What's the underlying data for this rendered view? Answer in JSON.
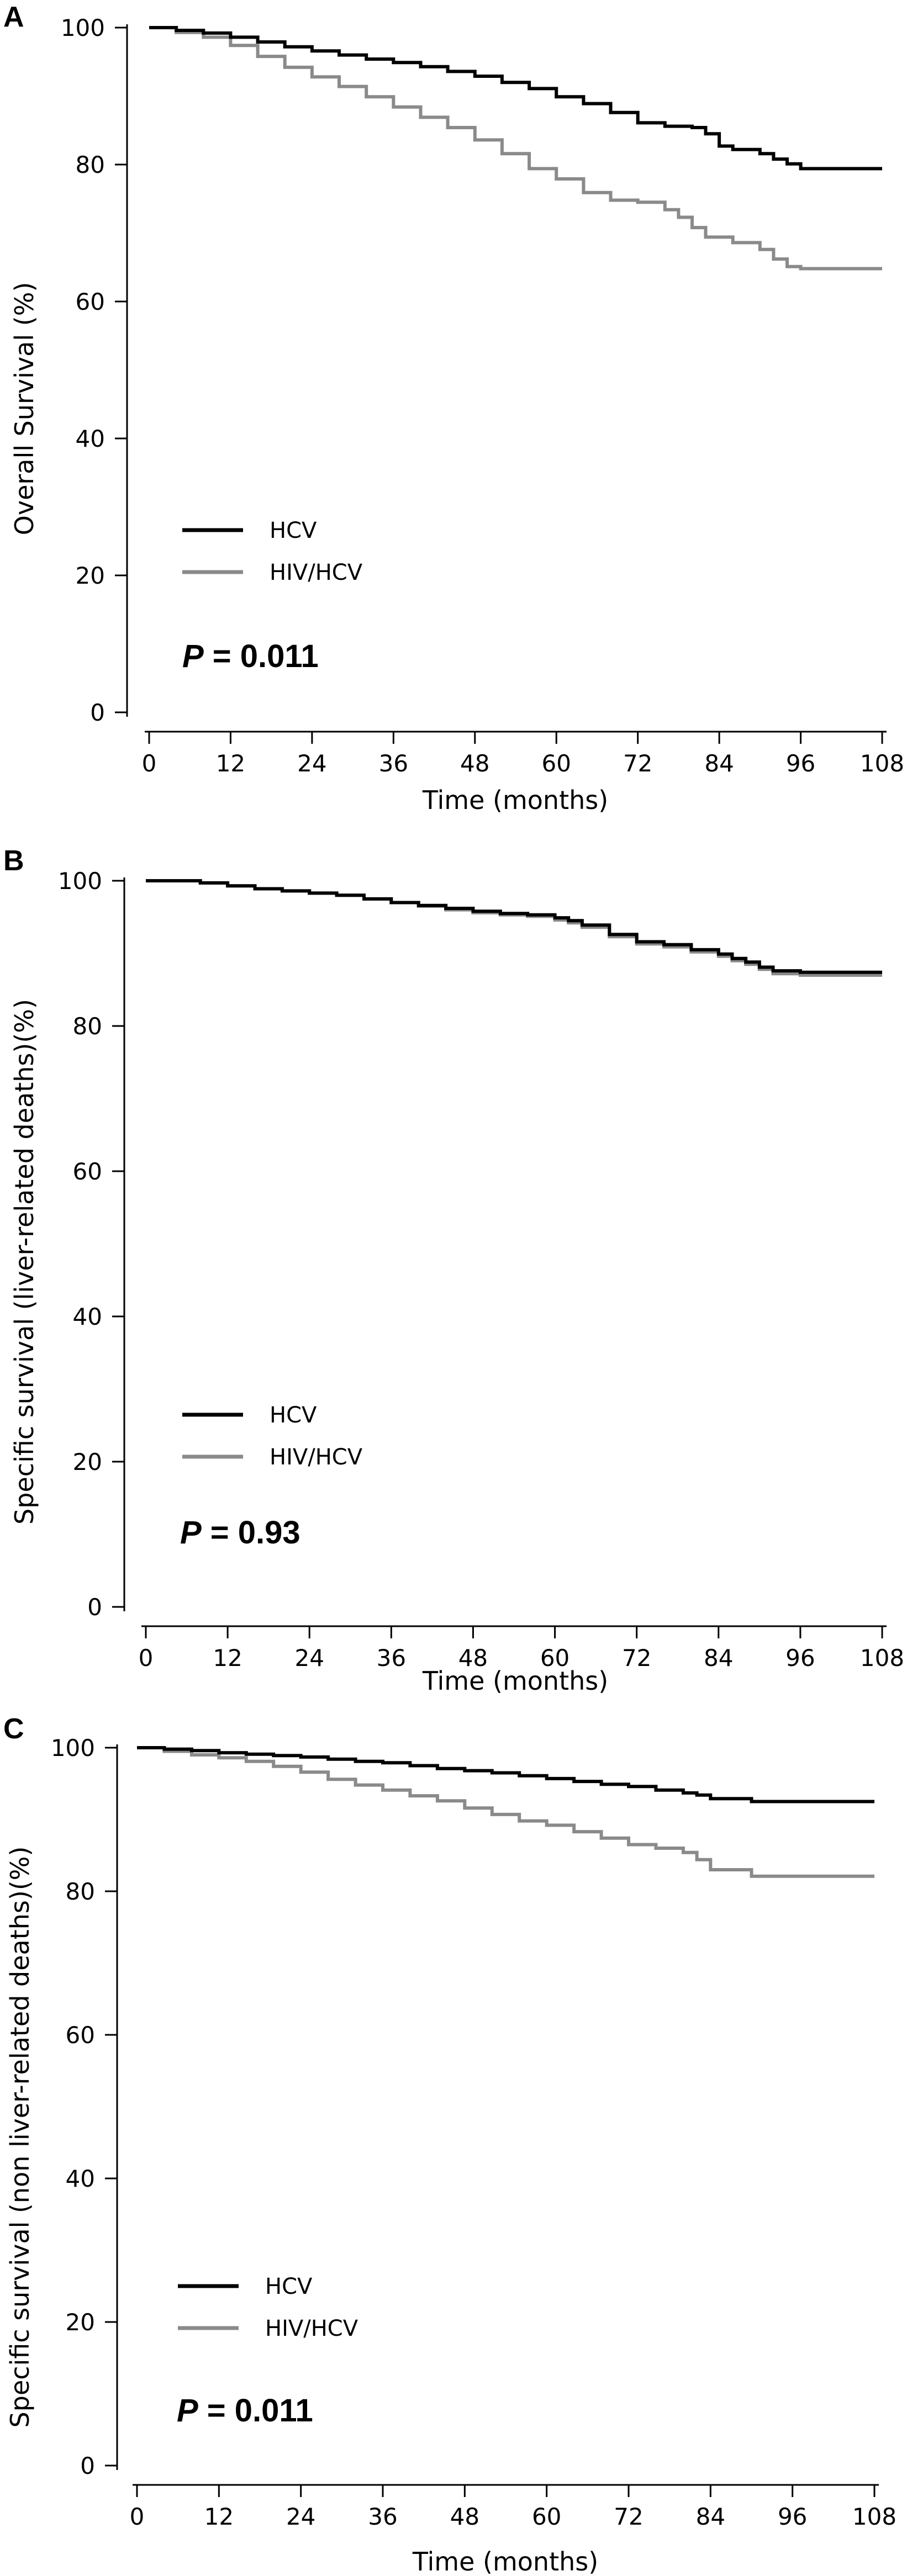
{
  "chart_data": [
    {
      "type": "line",
      "panel_label": "A",
      "xlabel": "Time (months)",
      "ylabel": "Overall Survival (%)",
      "xlim": [
        0,
        108
      ],
      "ylim": [
        0,
        100
      ],
      "xticks": [
        "0",
        "12",
        "24",
        "36",
        "48",
        "60",
        "72",
        "84",
        "96",
        "108"
      ],
      "yticks": [
        "0",
        "20",
        "40",
        "60",
        "80",
        "100"
      ],
      "grid": false,
      "legend_position": "lower-left",
      "series": [
        {
          "name": "HCV",
          "color": "#000000",
          "points": [
            [
              0,
              100
            ],
            [
              4,
              99.6
            ],
            [
              8,
              99.2
            ],
            [
              12,
              98.6
            ],
            [
              16,
              97.9
            ],
            [
              20,
              97.2
            ],
            [
              24,
              96.6
            ],
            [
              28,
              96.0
            ],
            [
              32,
              95.4
            ],
            [
              36,
              94.9
            ],
            [
              40,
              94.3
            ],
            [
              44,
              93.6
            ],
            [
              48,
              92.9
            ],
            [
              52,
              92.0
            ],
            [
              56,
              91.1
            ],
            [
              60,
              89.9
            ],
            [
              64,
              88.9
            ],
            [
              68,
              87.6
            ],
            [
              72,
              86.1
            ],
            [
              76,
              85.6
            ],
            [
              80,
              85.4
            ],
            [
              82,
              84.5
            ],
            [
              84,
              82.7
            ],
            [
              86,
              82.2
            ],
            [
              90,
              81.6
            ],
            [
              92,
              80.8
            ],
            [
              94,
              80.1
            ],
            [
              96,
              79.4
            ],
            [
              100,
              79.4
            ],
            [
              108,
              79.4
            ]
          ]
        },
        {
          "name": "HIV/HCV",
          "color": "#8a8a8a",
          "points": [
            [
              0,
              100
            ],
            [
              4,
              99.3
            ],
            [
              8,
              98.6
            ],
            [
              12,
              97.4
            ],
            [
              16,
              95.8
            ],
            [
              20,
              94.2
            ],
            [
              24,
              92.8
            ],
            [
              28,
              91.4
            ],
            [
              32,
              89.9
            ],
            [
              36,
              88.4
            ],
            [
              40,
              86.9
            ],
            [
              44,
              85.4
            ],
            [
              48,
              83.6
            ],
            [
              52,
              81.6
            ],
            [
              56,
              79.4
            ],
            [
              60,
              77.9
            ],
            [
              64,
              75.9
            ],
            [
              68,
              74.8
            ],
            [
              72,
              74.5
            ],
            [
              76,
              73.4
            ],
            [
              78,
              72.3
            ],
            [
              80,
              70.8
            ],
            [
              82,
              69.4
            ],
            [
              86,
              68.6
            ],
            [
              90,
              67.6
            ],
            [
              92,
              66.2
            ],
            [
              94,
              65.1
            ],
            [
              96,
              64.8
            ],
            [
              108,
              64.8
            ]
          ]
        }
      ],
      "annotation": {
        "prefix": "P",
        "text": " = 0.011"
      }
    },
    {
      "type": "line",
      "panel_label": "B",
      "xlabel": "Time (months)",
      "ylabel": "Specific survival (liver-related deaths)(%)",
      "xlim": [
        0,
        108
      ],
      "ylim": [
        0,
        100
      ],
      "xticks": [
        "0",
        "12",
        "24",
        "36",
        "48",
        "60",
        "72",
        "84",
        "96",
        "108"
      ],
      "yticks": [
        "0",
        "20",
        "40",
        "60",
        "80",
        "100"
      ],
      "grid": false,
      "legend_position": "lower-left",
      "series": [
        {
          "name": "HCV",
          "color": "#000000",
          "points": [
            [
              0,
              100
            ],
            [
              8,
              99.7
            ],
            [
              12,
              99.3
            ],
            [
              16,
              98.9
            ],
            [
              20,
              98.6
            ],
            [
              24,
              98.3
            ],
            [
              28,
              98.0
            ],
            [
              32,
              97.5
            ],
            [
              36,
              97.0
            ],
            [
              40,
              96.6
            ],
            [
              44,
              96.2
            ],
            [
              48,
              95.8
            ],
            [
              52,
              95.5
            ],
            [
              56,
              95.3
            ],
            [
              60,
              94.9
            ],
            [
              62,
              94.5
            ],
            [
              64,
              93.9
            ],
            [
              68,
              92.6
            ],
            [
              72,
              91.6
            ],
            [
              76,
              91.2
            ],
            [
              80,
              90.5
            ],
            [
              84,
              89.9
            ],
            [
              86,
              89.3
            ],
            [
              88,
              88.8
            ],
            [
              90,
              88.1
            ],
            [
              92,
              87.6
            ],
            [
              96,
              87.4
            ],
            [
              108,
              87.4
            ]
          ]
        },
        {
          "name": "HIV/HCV",
          "color": "#8a8a8a",
          "points": [
            [
              0,
              100
            ],
            [
              8,
              99.7
            ],
            [
              12,
              99.3
            ],
            [
              16,
              98.9
            ],
            [
              20,
              98.6
            ],
            [
              24,
              98.3
            ],
            [
              28,
              98.0
            ],
            [
              32,
              97.5
            ],
            [
              36,
              97.0
            ],
            [
              40,
              96.5
            ],
            [
              44,
              96.0
            ],
            [
              48,
              95.6
            ],
            [
              52,
              95.3
            ],
            [
              56,
              95.1
            ],
            [
              60,
              94.6
            ],
            [
              62,
              94.2
            ],
            [
              64,
              93.6
            ],
            [
              68,
              92.3
            ],
            [
              72,
              91.3
            ],
            [
              76,
              90.9
            ],
            [
              80,
              90.2
            ],
            [
              84,
              89.6
            ],
            [
              86,
              89.0
            ],
            [
              88,
              88.5
            ],
            [
              90,
              87.8
            ],
            [
              92,
              87.2
            ],
            [
              96,
              87.0
            ],
            [
              108,
              87.0
            ]
          ]
        }
      ],
      "annotation": {
        "prefix": "P",
        "text": " = 0.93"
      }
    },
    {
      "type": "line",
      "panel_label": "C",
      "xlabel": "Time (months)",
      "ylabel": "Specific survival (non liver-related deaths)(%)",
      "xlim": [
        0,
        108
      ],
      "ylim": [
        0,
        100
      ],
      "xticks": [
        "0",
        "12",
        "24",
        "36",
        "48",
        "60",
        "72",
        "84",
        "96",
        "108"
      ],
      "yticks": [
        "0",
        "20",
        "40",
        "60",
        "80",
        "100"
      ],
      "grid": false,
      "legend_position": "lower-left",
      "series": [
        {
          "name": "HCV",
          "color": "#000000",
          "points": [
            [
              0,
              100
            ],
            [
              4,
              99.8
            ],
            [
              8,
              99.6
            ],
            [
              12,
              99.3
            ],
            [
              16,
              99.1
            ],
            [
              20,
              98.9
            ],
            [
              24,
              98.7
            ],
            [
              28,
              98.4
            ],
            [
              32,
              98.1
            ],
            [
              36,
              97.9
            ],
            [
              40,
              97.5
            ],
            [
              44,
              97.1
            ],
            [
              48,
              96.8
            ],
            [
              52,
              96.5
            ],
            [
              56,
              96.1
            ],
            [
              60,
              95.7
            ],
            [
              64,
              95.3
            ],
            [
              68,
              94.9
            ],
            [
              72,
              94.6
            ],
            [
              76,
              94.1
            ],
            [
              80,
              93.7
            ],
            [
              82,
              93.4
            ],
            [
              84,
              92.9
            ],
            [
              90,
              92.5
            ],
            [
              108,
              92.5
            ]
          ]
        },
        {
          "name": "HIV/HCV",
          "color": "#8a8a8a",
          "points": [
            [
              0,
              100
            ],
            [
              4,
              99.5
            ],
            [
              8,
              99.0
            ],
            [
              12,
              98.6
            ],
            [
              16,
              98.1
            ],
            [
              20,
              97.4
            ],
            [
              24,
              96.6
            ],
            [
              28,
              95.6
            ],
            [
              32,
              94.8
            ],
            [
              36,
              94.1
            ],
            [
              40,
              93.3
            ],
            [
              44,
              92.6
            ],
            [
              48,
              91.6
            ],
            [
              52,
              90.7
            ],
            [
              56,
              89.8
            ],
            [
              60,
              89.2
            ],
            [
              64,
              88.3
            ],
            [
              68,
              87.4
            ],
            [
              72,
              86.5
            ],
            [
              76,
              86.0
            ],
            [
              80,
              85.4
            ],
            [
              82,
              84.4
            ],
            [
              84,
              83.0
            ],
            [
              88,
              83.0
            ],
            [
              90,
              82.1
            ],
            [
              108,
              82.1
            ]
          ]
        }
      ],
      "annotation": {
        "prefix": "P",
        "text": " = 0.011"
      }
    }
  ]
}
